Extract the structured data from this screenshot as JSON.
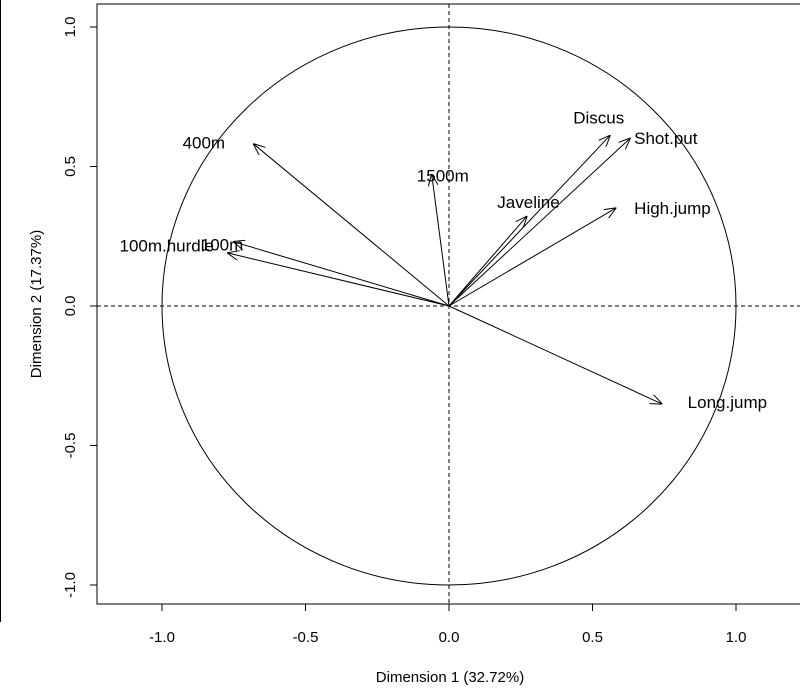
{
  "chart_data": {
    "type": "scatter",
    "subtype": "pca-correlation-circle",
    "title": "",
    "xlabel": "Dimension 1 (32.72%)",
    "ylabel": "Dimension 2 (17.37%)",
    "xlim": [
      -1.0,
      1.0
    ],
    "ylim": [
      -1.0,
      1.0
    ],
    "x_ticks": [
      -1.0,
      -0.5,
      0.0,
      0.5,
      1.0
    ],
    "y_ticks": [
      -1.0,
      -0.5,
      0.0,
      0.5,
      1.0
    ],
    "x_tick_labels": [
      "-1.0",
      "-0.5",
      "0.0",
      "0.5",
      "1.0"
    ],
    "y_tick_labels": [
      "-1.0",
      "-0.5",
      "0.0",
      "0.5",
      "1.0"
    ],
    "grid": false,
    "reference_lines": [
      "x = 0 (dashed)",
      "y = 0 (dashed)"
    ],
    "unit_circle": true,
    "arrow_color": "#000000",
    "variables": [
      {
        "name": "100m",
        "x": -0.77,
        "y": 0.19
      },
      {
        "name": "400m",
        "x": -0.68,
        "y": 0.58
      },
      {
        "name": "1500m",
        "x": -0.06,
        "y": 0.47
      },
      {
        "name": "100m.hurdle",
        "x": -0.75,
        "y": 0.23
      },
      {
        "name": "Discus",
        "x": 0.56,
        "y": 0.61
      },
      {
        "name": "Shot.put",
        "x": 0.63,
        "y": 0.6
      },
      {
        "name": "Javeline",
        "x": 0.27,
        "y": 0.32
      },
      {
        "name": "High.jump",
        "x": 0.58,
        "y": 0.35
      },
      {
        "name": "Long.jump",
        "x": 0.74,
        "y": -0.35
      }
    ]
  }
}
